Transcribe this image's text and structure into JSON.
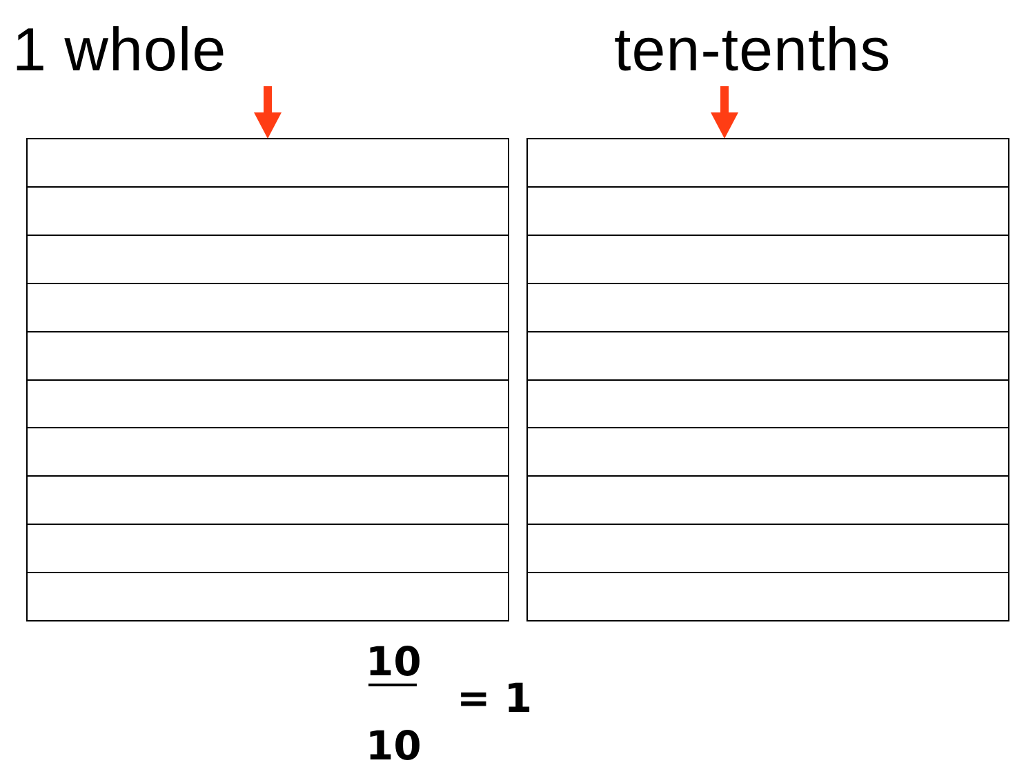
{
  "colors": {
    "arrow": "#FF3D14",
    "lines": "#000000",
    "background": "#FFFFFF"
  },
  "left_panel": {
    "heading": "1 whole",
    "strip_count": 10
  },
  "right_panel": {
    "heading": "ten-tenths",
    "strip_count": 10
  },
  "equation": {
    "numerator": "10",
    "denominator": "10",
    "result": "= 1"
  }
}
